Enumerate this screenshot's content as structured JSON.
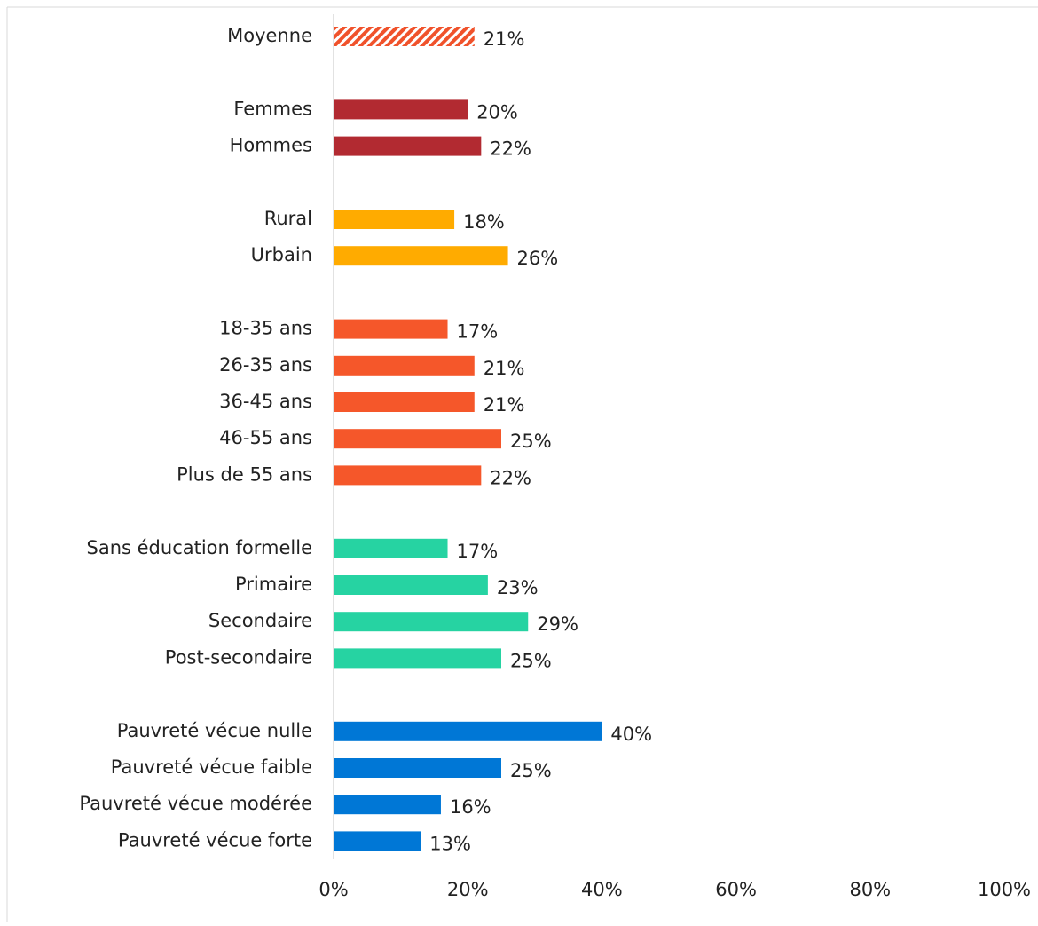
{
  "chart_data": {
    "type": "hbar",
    "categories": [
      "Moyenne",
      null,
      "Femmes",
      "Hommes",
      null,
      "Rural",
      "Urbain",
      null,
      "18-35 ans",
      "26-35 ans",
      "36-45 ans",
      "46-55 ans",
      "Plus de 55 ans",
      null,
      "Sans éducation formelle",
      "Primaire",
      "Secondaire",
      "Post-secondaire",
      null,
      "Pauvreté vécue nulle",
      "Pauvreté vécue faible",
      "Pauvreté vécue modérée",
      "Pauvreté vécue forte"
    ],
    "values": [
      21,
      null,
      20,
      22,
      null,
      18,
      26,
      null,
      17,
      21,
      21,
      25,
      22,
      null,
      17,
      23,
      29,
      25,
      null,
      40,
      25,
      16,
      13
    ],
    "value_labels": [
      "21%",
      null,
      "20%",
      "22%",
      null,
      "18%",
      "26%",
      null,
      "17%",
      "21%",
      "21%",
      "25%",
      "22%",
      null,
      "17%",
      "23%",
      "29%",
      "25%",
      null,
      "40%",
      "25%",
      "16%",
      "13%"
    ],
    "colors": [
      "#f0522b",
      null,
      "#b22a31",
      "#b22a31",
      null,
      "#ffab00",
      "#ffab00",
      null,
      "#f5572a",
      "#f5572a",
      "#f5572a",
      "#f5572a",
      "#f5572a",
      null,
      "#26d3a2",
      "#26d3a2",
      "#26d3a2",
      "#26d3a2",
      null,
      "#0077d6",
      "#0077d6",
      "#0077d6",
      "#0077d6"
    ],
    "hatched": [
      "Moyenne"
    ],
    "xlim": [
      0,
      100
    ],
    "xticks": [
      {
        "value": 0,
        "label": "0%"
      },
      {
        "value": 20,
        "label": "20%"
      },
      {
        "value": 40,
        "label": "40%"
      },
      {
        "value": 60,
        "label": "60%"
      },
      {
        "value": 80,
        "label": "80%"
      },
      {
        "value": 100,
        "label": "100%"
      }
    ]
  }
}
